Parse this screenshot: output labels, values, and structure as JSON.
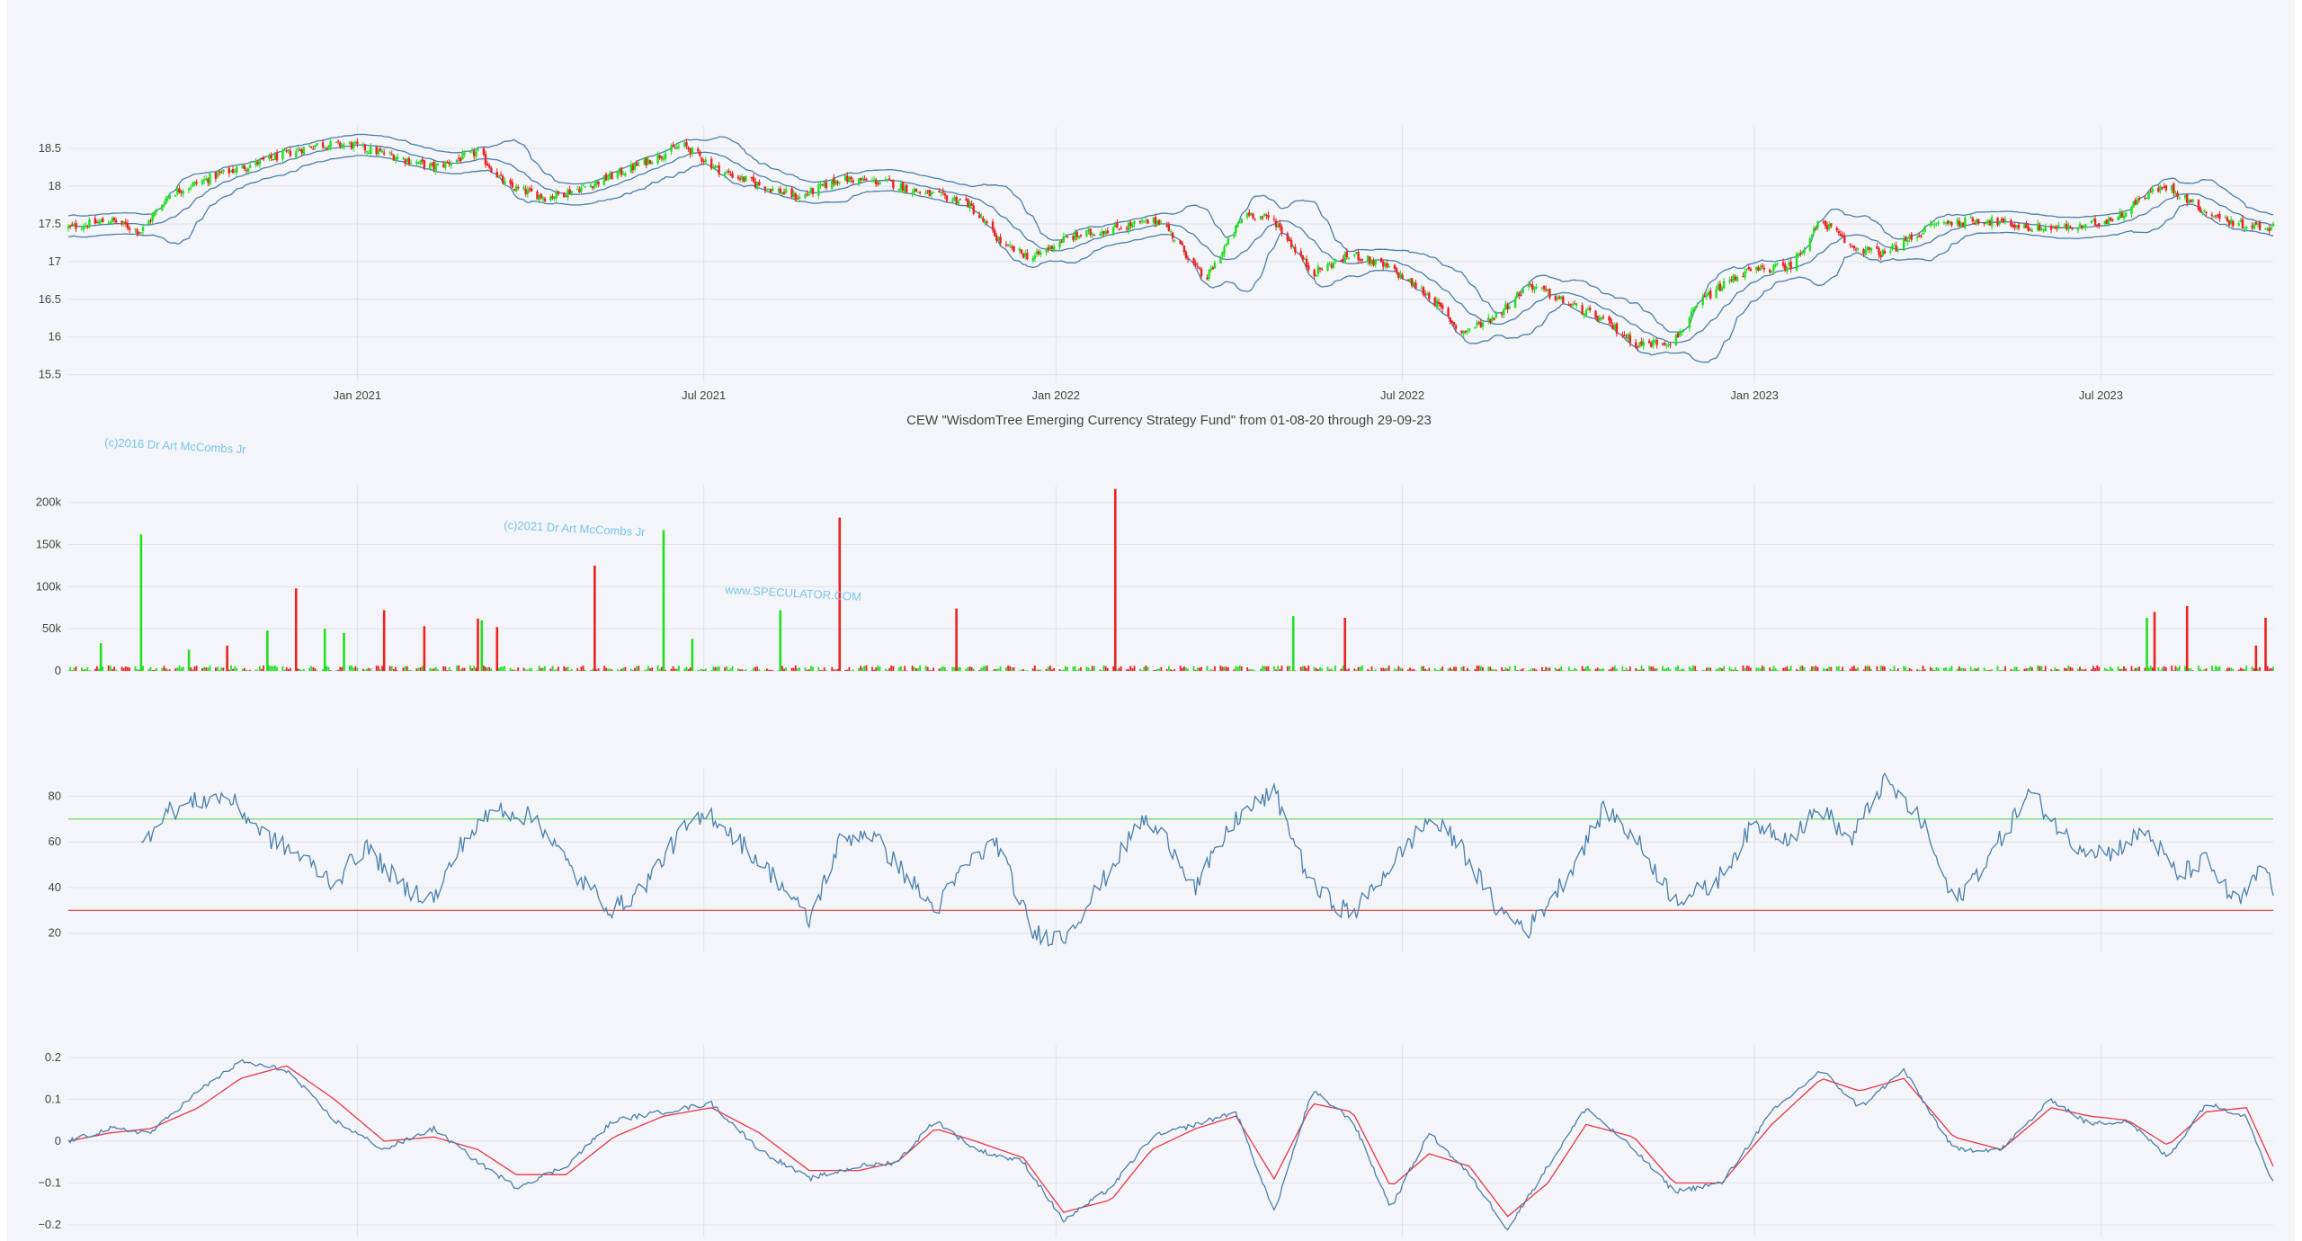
{
  "chart_title": "CEW \"WisdomTree Emerging Currency Strategy Fund\" from 01-08-20 through 29-09-23",
  "watermarks": [
    "(c)2016 Dr Art McCombs Jr",
    "(c)2021 Dr Art McCombs Jr",
    "www.SPECULATOR.COM"
  ],
  "colors": {
    "up": "#22e022",
    "down": "#ee2222",
    "line": "#4a7fae",
    "signal": "#e8354a",
    "overbought": "#5ad65a",
    "oversold": "#e23a3a",
    "grid": "#e0e4ea"
  },
  "x_dates": {
    "start": "2020-08-03",
    "end": "2023-09-29",
    "ticks": [
      {
        "date": "2021-01-01",
        "label": "Jan 2021"
      },
      {
        "date": "2021-07-01",
        "label": "Jul 2021"
      },
      {
        "date": "2022-01-01",
        "label": "Jan 2022"
      },
      {
        "date": "2022-07-01",
        "label": "Jul 2022"
      },
      {
        "date": "2023-01-01",
        "label": "Jan 2023"
      },
      {
        "date": "2023-07-01",
        "label": "Jul 2023"
      }
    ]
  },
  "chart_data": [
    {
      "type": "candlestick",
      "panel": "price",
      "ylim": [
        15.4,
        18.8
      ],
      "yticks": [
        15.5,
        16,
        16.5,
        17,
        17.5,
        18,
        18.5
      ],
      "ytick_labels": [
        "15.5",
        "16",
        "16.5",
        "17",
        "17.5",
        "18",
        "18.5"
      ],
      "overlay": "bollinger bands (upper, middle, lower)",
      "price_path": [
        [
          "2020-08-03",
          17.45
        ],
        [
          "2020-08-25",
          17.55
        ],
        [
          "2020-09-10",
          17.4
        ],
        [
          "2020-09-25",
          17.9
        ],
        [
          "2020-10-20",
          18.15
        ],
        [
          "2020-11-15",
          18.35
        ],
        [
          "2020-12-10",
          18.55
        ],
        [
          "2020-12-28",
          18.55
        ],
        [
          "2021-01-20",
          18.4
        ],
        [
          "2021-02-10",
          18.25
        ],
        [
          "2021-03-05",
          18.45
        ],
        [
          "2021-03-20",
          18.0
        ],
        [
          "2021-04-10",
          17.85
        ],
        [
          "2021-05-01",
          18.0
        ],
        [
          "2021-05-25",
          18.25
        ],
        [
          "2021-06-20",
          18.55
        ],
        [
          "2021-07-10",
          18.2
        ],
        [
          "2021-08-01",
          18.0
        ],
        [
          "2021-08-20",
          17.85
        ],
        [
          "2021-09-10",
          18.1
        ],
        [
          "2021-10-05",
          18.05
        ],
        [
          "2021-10-25",
          17.9
        ],
        [
          "2021-11-15",
          17.8
        ],
        [
          "2021-12-05",
          17.2
        ],
        [
          "2021-12-20",
          17.05
        ],
        [
          "2022-01-05",
          17.3
        ],
        [
          "2022-02-01",
          17.45
        ],
        [
          "2022-02-25",
          17.55
        ],
        [
          "2022-03-10",
          17.1
        ],
        [
          "2022-03-20",
          16.75
        ],
        [
          "2022-04-10",
          17.65
        ],
        [
          "2022-04-25",
          17.55
        ],
        [
          "2022-05-15",
          16.85
        ],
        [
          "2022-06-05",
          17.1
        ],
        [
          "2022-06-25",
          16.9
        ],
        [
          "2022-07-15",
          16.55
        ],
        [
          "2022-08-01",
          16.05
        ],
        [
          "2022-08-20",
          16.3
        ],
        [
          "2022-09-05",
          16.7
        ],
        [
          "2022-09-25",
          16.45
        ],
        [
          "2022-10-15",
          16.2
        ],
        [
          "2022-11-01",
          15.9
        ],
        [
          "2022-11-20",
          15.95
        ],
        [
          "2022-12-05",
          16.5
        ],
        [
          "2022-12-25",
          16.85
        ],
        [
          "2023-01-20",
          16.95
        ],
        [
          "2023-02-05",
          17.55
        ],
        [
          "2023-02-20",
          17.2
        ],
        [
          "2023-03-10",
          17.1
        ],
        [
          "2023-04-05",
          17.5
        ],
        [
          "2023-05-01",
          17.55
        ],
        [
          "2023-05-25",
          17.45
        ],
        [
          "2023-06-20",
          17.45
        ],
        [
          "2023-07-10",
          17.6
        ],
        [
          "2023-07-25",
          17.9
        ],
        [
          "2023-08-05",
          18.0
        ],
        [
          "2023-08-25",
          17.65
        ],
        [
          "2023-09-10",
          17.5
        ],
        [
          "2023-09-29",
          17.45
        ]
      ]
    },
    {
      "type": "bar",
      "panel": "volume",
      "ylim": [
        0,
        220000
      ],
      "yticks": [
        0,
        50000,
        100000,
        150000,
        200000
      ],
      "ytick_labels": [
        "0",
        "50k",
        "100k",
        "150k",
        "200k"
      ],
      "spikes": [
        [
          "2020-08-20",
          33000,
          "up"
        ],
        [
          "2020-09-10",
          162000,
          "up"
        ],
        [
          "2020-10-05",
          25000,
          "up"
        ],
        [
          "2020-10-25",
          30000,
          "down"
        ],
        [
          "2020-11-15",
          48000,
          "up"
        ],
        [
          "2020-11-30",
          98000,
          "down"
        ],
        [
          "2020-12-15",
          50000,
          "up"
        ],
        [
          "2020-12-25",
          45000,
          "up"
        ],
        [
          "2021-01-15",
          72000,
          "down"
        ],
        [
          "2021-02-05",
          53000,
          "down"
        ],
        [
          "2021-03-05",
          62000,
          "down"
        ],
        [
          "2021-03-07",
          60000,
          "up"
        ],
        [
          "2021-03-15",
          52000,
          "down"
        ],
        [
          "2021-05-05",
          125000,
          "down"
        ],
        [
          "2021-06-10",
          167000,
          "up"
        ],
        [
          "2021-06-25",
          38000,
          "up"
        ],
        [
          "2021-08-10",
          72000,
          "up"
        ],
        [
          "2021-09-10",
          182000,
          "down"
        ],
        [
          "2021-11-10",
          74000,
          "down"
        ],
        [
          "2022-02-01",
          216000,
          "down"
        ],
        [
          "2022-05-05",
          65000,
          "up"
        ],
        [
          "2022-06-01",
          63000,
          "down"
        ],
        [
          "2023-07-25",
          63000,
          "up"
        ],
        [
          "2023-07-29",
          70000,
          "down"
        ],
        [
          "2023-08-15",
          77000,
          "down"
        ],
        [
          "2023-09-20",
          30000,
          "down"
        ],
        [
          "2023-09-25",
          63000,
          "down"
        ]
      ]
    },
    {
      "type": "line",
      "panel": "rsi",
      "ylim": [
        12,
        92
      ],
      "yticks": [
        20,
        40,
        60,
        80
      ],
      "ytick_labels": [
        "20",
        "40",
        "60",
        "80"
      ],
      "reference_lines": [
        70,
        30
      ],
      "x": [
        "2020-09-10",
        "2020-09-20",
        "2020-10-10",
        "2020-10-25",
        "2020-11-15",
        "2020-11-30",
        "2020-12-20",
        "2021-01-05",
        "2021-01-25",
        "2021-02-10",
        "2021-02-25",
        "2021-03-15",
        "2021-04-05",
        "2021-04-25",
        "2021-05-15",
        "2021-05-30",
        "2021-06-20",
        "2021-07-05",
        "2021-07-20",
        "2021-08-10",
        "2021-08-25",
        "2021-09-10",
        "2021-09-25",
        "2021-10-15",
        "2021-10-30",
        "2021-11-15",
        "2021-12-01",
        "2021-12-20",
        "2022-01-05",
        "2022-01-25",
        "2022-02-15",
        "2022-03-01",
        "2022-03-15",
        "2022-04-05",
        "2022-04-25",
        "2022-05-15",
        "2022-06-05",
        "2022-06-25",
        "2022-07-15",
        "2022-07-30",
        "2022-08-20",
        "2022-09-05",
        "2022-09-25",
        "2022-10-15",
        "2022-11-01",
        "2022-11-20",
        "2022-12-10",
        "2023-01-01",
        "2023-01-20",
        "2023-02-05",
        "2023-02-20",
        "2023-03-10",
        "2023-03-30",
        "2023-04-15",
        "2023-05-05",
        "2023-05-25",
        "2023-06-15",
        "2023-07-05",
        "2023-07-25",
        "2023-08-10",
        "2023-08-25",
        "2023-09-10",
        "2023-09-25",
        "2023-09-29"
      ],
      "values": [
        57,
        72,
        78,
        80,
        62,
        55,
        42,
        58,
        40,
        35,
        60,
        75,
        70,
        45,
        30,
        40,
        65,
        72,
        60,
        42,
        25,
        60,
        65,
        45,
        30,
        50,
        60,
        20,
        18,
        42,
        70,
        60,
        40,
        70,
        82,
        40,
        28,
        50,
        70,
        60,
        30,
        22,
        45,
        75,
        60,
        35,
        40,
        68,
        62,
        75,
        60,
        87,
        68,
        33,
        55,
        82,
        60,
        55,
        65,
        45,
        52,
        32,
        50,
        37
      ]
    },
    {
      "type": "line",
      "panel": "oscillator",
      "ylim": [
        -0.23,
        0.23
      ],
      "yticks": [
        -0.2,
        -0.1,
        0,
        0.1,
        0.2
      ],
      "ytick_labels": [
        "−0.2",
        "−0.1",
        "0",
        "0.1",
        "0.2"
      ],
      "series": [
        {
          "role": "oscillator",
          "x": [
            "2020-08-03",
            "2020-08-25",
            "2020-09-15",
            "2020-10-10",
            "2020-11-01",
            "2020-11-25",
            "2020-12-20",
            "2021-01-15",
            "2021-02-10",
            "2021-03-05",
            "2021-03-25",
            "2021-04-20",
            "2021-05-15",
            "2021-06-10",
            "2021-07-05",
            "2021-07-30",
            "2021-08-25",
            "2021-09-20",
            "2021-10-10",
            "2021-10-30",
            "2021-11-20",
            "2021-12-15",
            "2022-01-05",
            "2022-01-30",
            "2022-02-20",
            "2022-03-15",
            "2022-04-05",
            "2022-04-25",
            "2022-05-15",
            "2022-06-05",
            "2022-06-25",
            "2022-07-15",
            "2022-08-05",
            "2022-08-25",
            "2022-09-15",
            "2022-10-05",
            "2022-10-30",
            "2022-11-20",
            "2022-12-15",
            "2023-01-10",
            "2023-02-05",
            "2023-02-25",
            "2023-03-20",
            "2023-04-15",
            "2023-05-10",
            "2023-06-05",
            "2023-06-25",
            "2023-07-15",
            "2023-08-05",
            "2023-08-25",
            "2023-09-15",
            "2023-09-29"
          ],
          "values": [
            0.0,
            0.03,
            0.02,
            0.12,
            0.19,
            0.17,
            0.05,
            -0.02,
            0.03,
            -0.05,
            -0.11,
            -0.06,
            0.05,
            0.07,
            0.09,
            -0.02,
            -0.09,
            -0.06,
            -0.05,
            0.05,
            -0.02,
            -0.05,
            -0.19,
            -0.11,
            0.01,
            0.04,
            0.07,
            -0.17,
            0.12,
            0.05,
            -0.16,
            0.02,
            -0.08,
            -0.21,
            -0.06,
            0.08,
            -0.02,
            -0.12,
            -0.1,
            0.07,
            0.17,
            0.08,
            0.17,
            -0.02,
            -0.02,
            0.1,
            0.04,
            0.05,
            -0.04,
            0.09,
            0.06,
            -0.1
          ]
        },
        {
          "role": "signal",
          "x": [
            "2020-08-03",
            "2020-08-25",
            "2020-09-15",
            "2020-10-10",
            "2020-11-01",
            "2020-11-25",
            "2020-12-20",
            "2021-01-15",
            "2021-02-10",
            "2021-03-05",
            "2021-03-25",
            "2021-04-20",
            "2021-05-15",
            "2021-06-10",
            "2021-07-05",
            "2021-07-30",
            "2021-08-25",
            "2021-09-20",
            "2021-10-10",
            "2021-10-30",
            "2021-11-20",
            "2021-12-15",
            "2022-01-05",
            "2022-01-30",
            "2022-02-20",
            "2022-03-15",
            "2022-04-05",
            "2022-04-25",
            "2022-05-15",
            "2022-06-05",
            "2022-06-25",
            "2022-07-15",
            "2022-08-05",
            "2022-08-25",
            "2022-09-15",
            "2022-10-05",
            "2022-10-30",
            "2022-11-20",
            "2022-12-15",
            "2023-01-10",
            "2023-02-05",
            "2023-02-25",
            "2023-03-20",
            "2023-04-15",
            "2023-05-10",
            "2023-06-05",
            "2023-06-25",
            "2023-07-15",
            "2023-08-05",
            "2023-08-25",
            "2023-09-15",
            "2023-09-29"
          ],
          "values": [
            0.0,
            0.02,
            0.03,
            0.08,
            0.15,
            0.18,
            0.1,
            0.0,
            0.01,
            -0.02,
            -0.08,
            -0.08,
            0.01,
            0.06,
            0.08,
            0.02,
            -0.07,
            -0.07,
            -0.05,
            0.03,
            0.0,
            -0.04,
            -0.17,
            -0.14,
            -0.02,
            0.03,
            0.06,
            -0.09,
            0.09,
            0.07,
            -0.11,
            -0.03,
            -0.06,
            -0.18,
            -0.1,
            0.04,
            0.01,
            -0.1,
            -0.1,
            0.04,
            0.15,
            0.12,
            0.15,
            0.01,
            -0.02,
            0.08,
            0.06,
            0.05,
            -0.01,
            0.07,
            0.08,
            -0.06
          ]
        }
      ]
    }
  ]
}
